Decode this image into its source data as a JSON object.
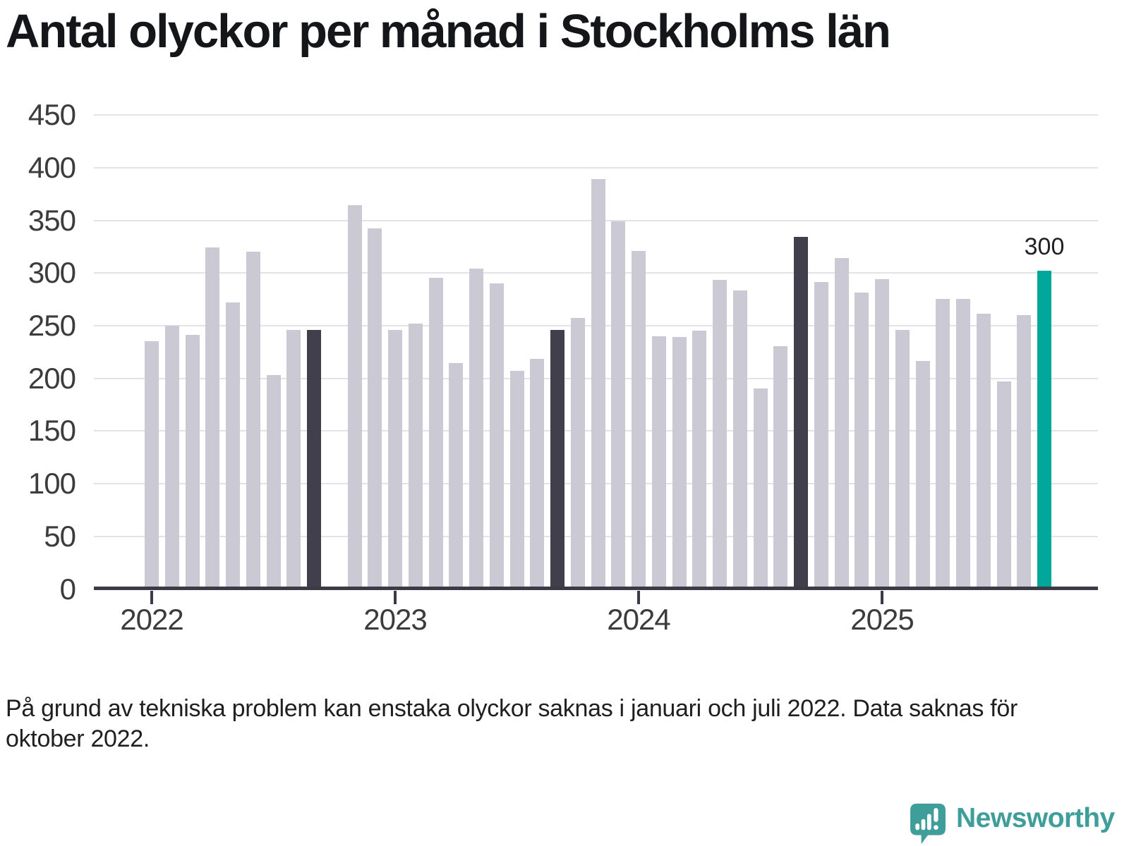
{
  "title": "Antal olyckor per månad i Stockholms län",
  "footnote": "På grund av tekniska problem kan enstaka olyckor saknas i januari och juli 2022. Data saknas för oktober 2022.",
  "branding": {
    "name": "Newsworthy",
    "logo_icon": "speech-bubble-bar-chart-icon"
  },
  "colors": {
    "bar": "#cbc9d3",
    "highlight_dark": "#413f4b",
    "highlight_current": "#00a89b",
    "gridline": "#e4e2e9",
    "axis": "#3b3a46",
    "label_text": "#3c3c3c",
    "title_text": "#15161a",
    "logo_teal": "#3f9e99"
  },
  "chart_data": {
    "type": "bar",
    "title": "Antal olyckor per månad i Stockholms län",
    "xlabel": "",
    "ylabel": "",
    "ylim": [
      0,
      450
    ],
    "yticks": [
      0,
      50,
      100,
      150,
      200,
      250,
      300,
      350,
      400,
      450
    ],
    "x_ticks": [
      "2022",
      "2023",
      "2024",
      "2025"
    ],
    "grid": "horizontal",
    "legend": "none",
    "annotation": {
      "month": "2025-09",
      "label": "300"
    },
    "series": [
      {
        "name": "Antal olyckor",
        "points": [
          {
            "month": "2022-01",
            "value": 233
          },
          {
            "month": "2022-02",
            "value": 248
          },
          {
            "month": "2022-03",
            "value": 239
          },
          {
            "month": "2022-04",
            "value": 322
          },
          {
            "month": "2022-05",
            "value": 270
          },
          {
            "month": "2022-06",
            "value": 318
          },
          {
            "month": "2022-07",
            "value": 201
          },
          {
            "month": "2022-08",
            "value": 244
          },
          {
            "month": "2022-09",
            "value": 244,
            "highlight": "dark"
          },
          {
            "month": "2022-10",
            "value": null
          },
          {
            "month": "2022-11",
            "value": 362
          },
          {
            "month": "2022-12",
            "value": 340
          },
          {
            "month": "2023-01",
            "value": 244
          },
          {
            "month": "2023-02",
            "value": 250
          },
          {
            "month": "2023-03",
            "value": 293
          },
          {
            "month": "2023-04",
            "value": 212
          },
          {
            "month": "2023-05",
            "value": 302
          },
          {
            "month": "2023-06",
            "value": 288
          },
          {
            "month": "2023-07",
            "value": 205
          },
          {
            "month": "2023-08",
            "value": 216
          },
          {
            "month": "2023-09",
            "value": 244,
            "highlight": "dark"
          },
          {
            "month": "2023-10",
            "value": 255
          },
          {
            "month": "2023-11",
            "value": 387
          },
          {
            "month": "2023-12",
            "value": 347
          },
          {
            "month": "2024-01",
            "value": 319
          },
          {
            "month": "2024-02",
            "value": 238
          },
          {
            "month": "2024-03",
            "value": 237
          },
          {
            "month": "2024-04",
            "value": 243
          },
          {
            "month": "2024-05",
            "value": 291
          },
          {
            "month": "2024-06",
            "value": 281
          },
          {
            "month": "2024-07",
            "value": 188
          },
          {
            "month": "2024-08",
            "value": 228
          },
          {
            "month": "2024-09",
            "value": 332,
            "highlight": "dark"
          },
          {
            "month": "2024-10",
            "value": 289
          },
          {
            "month": "2024-11",
            "value": 312
          },
          {
            "month": "2024-12",
            "value": 279
          },
          {
            "month": "2025-01",
            "value": 292
          },
          {
            "month": "2025-02",
            "value": 244
          },
          {
            "month": "2025-03",
            "value": 214
          },
          {
            "month": "2025-04",
            "value": 273
          },
          {
            "month": "2025-05",
            "value": 273
          },
          {
            "month": "2025-06",
            "value": 259
          },
          {
            "month": "2025-07",
            "value": 195
          },
          {
            "month": "2025-08",
            "value": 258
          },
          {
            "month": "2025-09",
            "value": 300,
            "highlight": "current"
          }
        ]
      }
    ]
  }
}
